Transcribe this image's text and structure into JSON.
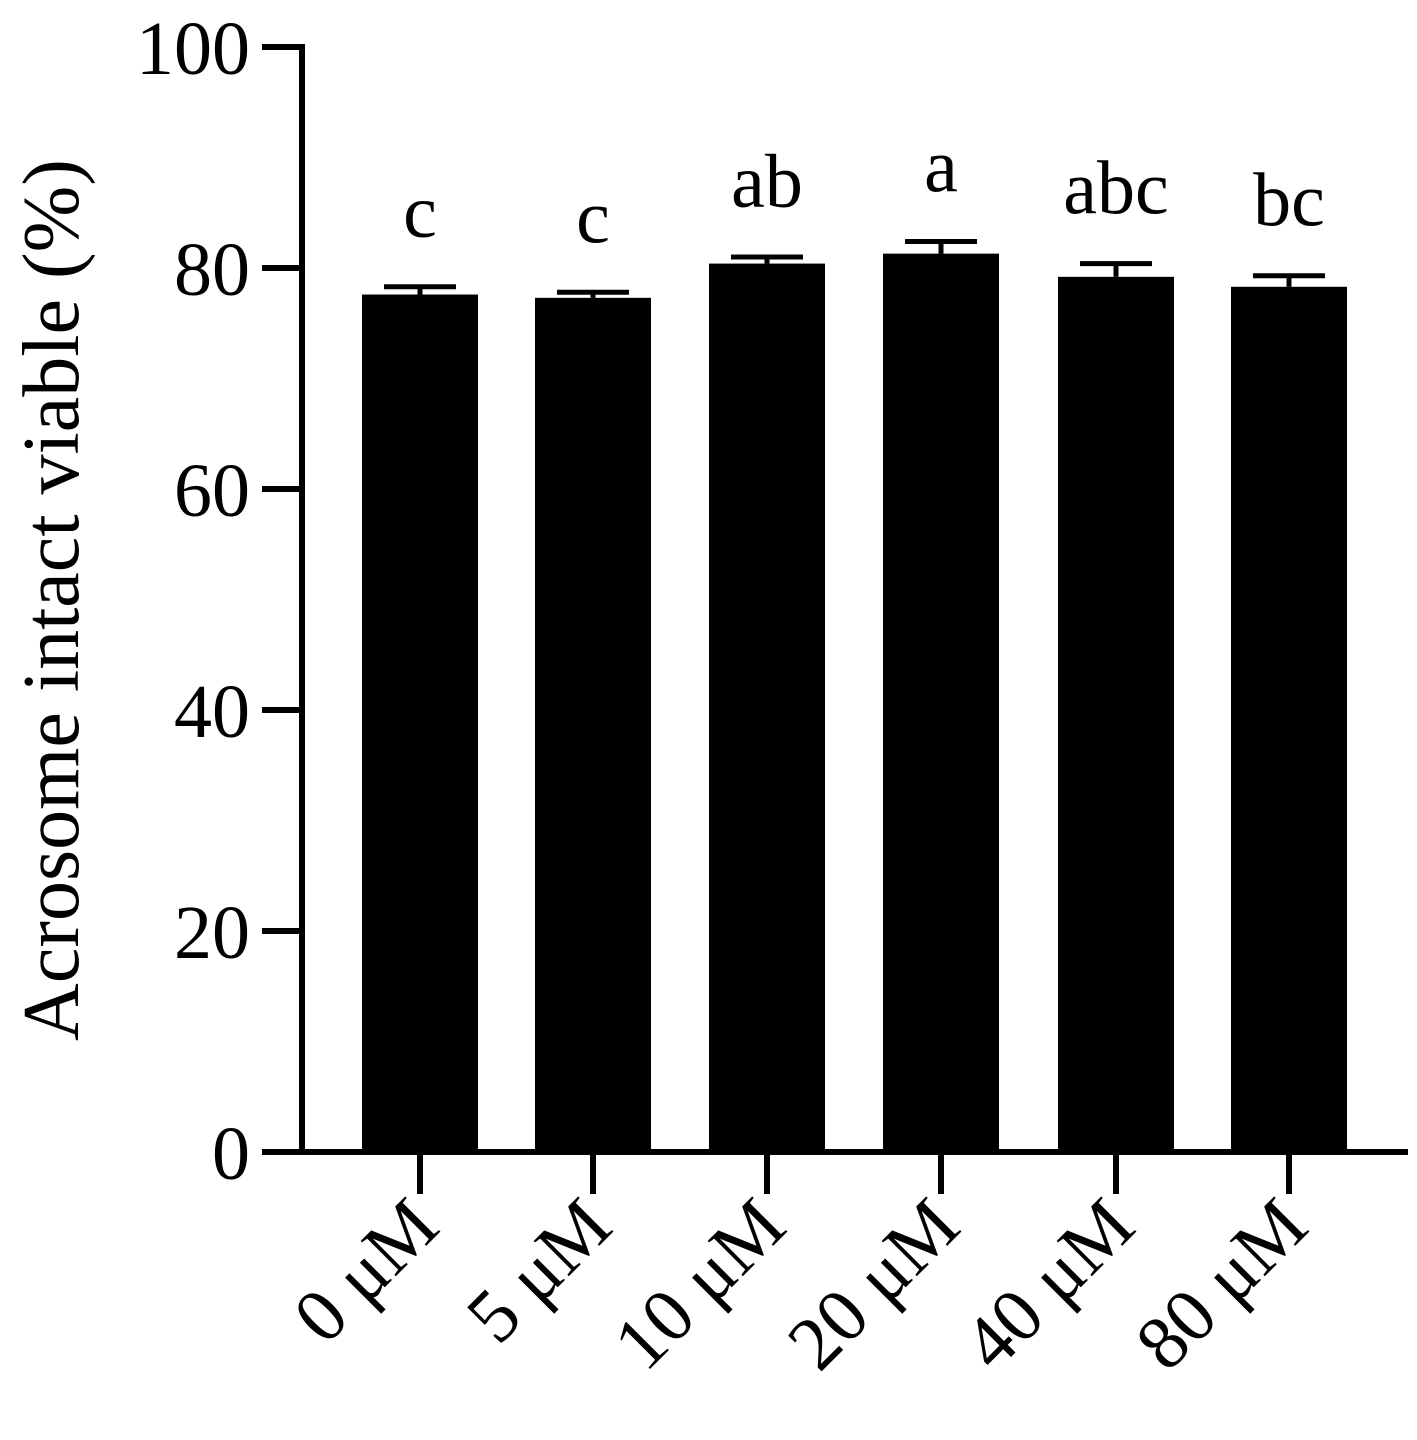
{
  "chart_data": {
    "type": "bar",
    "categories": [
      "0 μM",
      "5 μM",
      "10 μM",
      "20 μM",
      "40 μM",
      "80 μM"
    ],
    "values": [
      77.6,
      77.3,
      80.4,
      81.3,
      79.2,
      78.3
    ],
    "errors": [
      0.7,
      0.5,
      0.6,
      1.1,
      1.2,
      1.0
    ],
    "significance_letters": [
      "c",
      "c",
      "ab",
      "a",
      "abc",
      "bc"
    ],
    "ylabel": "Acrosome intact viable (%)",
    "xlabel": "",
    "title": "",
    "ylim": [
      0,
      100
    ],
    "yticks": [
      "0",
      "20",
      "40",
      "60",
      "80",
      "100"
    ],
    "bar_color": "#000000",
    "grid": false,
    "legend": "none"
  }
}
